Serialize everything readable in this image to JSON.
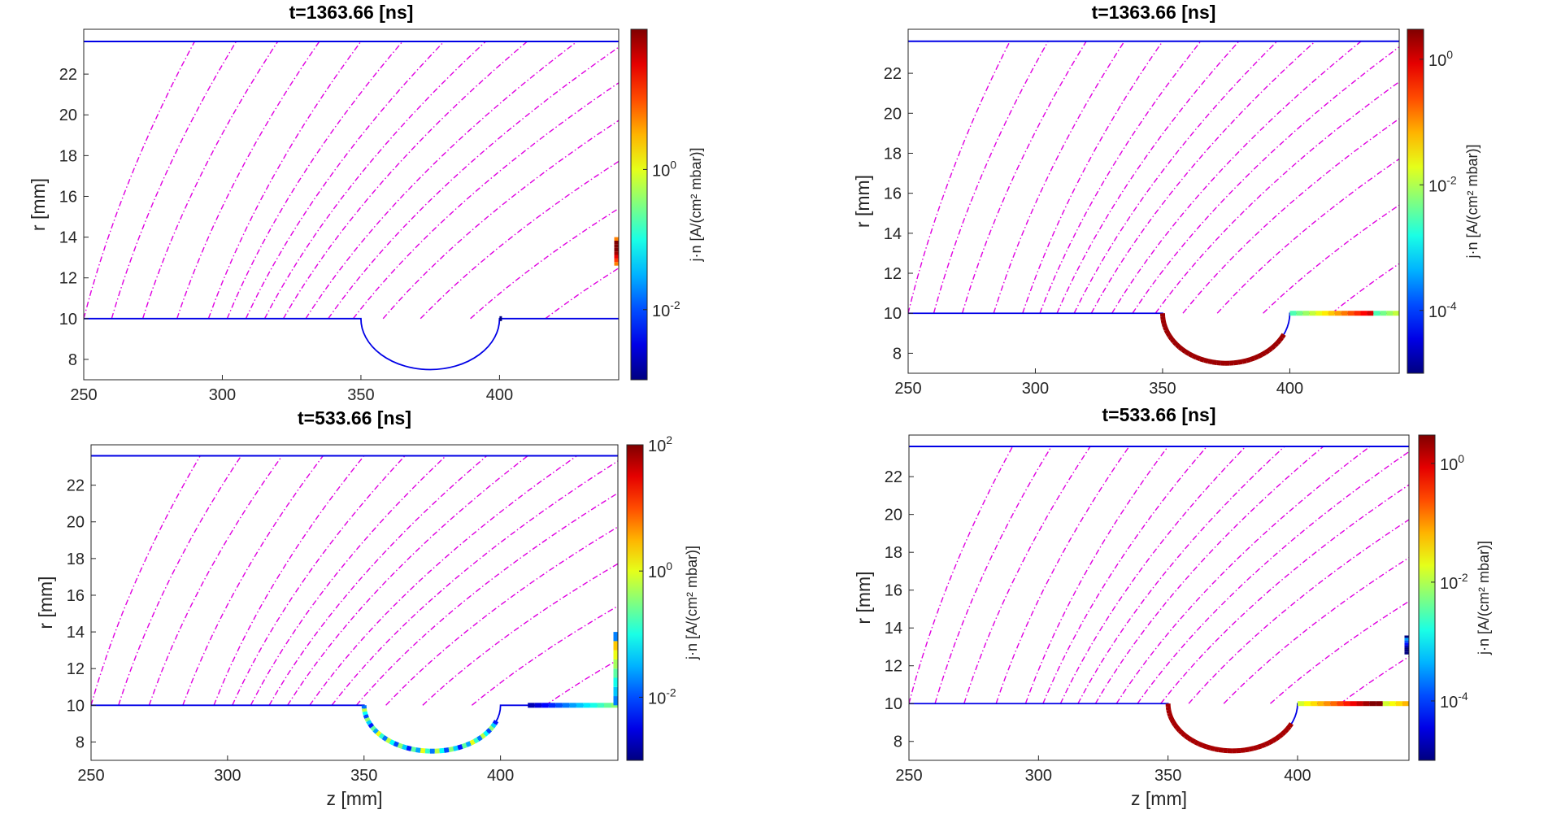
{
  "figure": {
    "background": "#ffffff",
    "field_line_color": "#e000e0",
    "boundary_color": "#0000e6"
  },
  "chart_data": [
    {
      "type": "scatter",
      "title": "t=1363.66 [ns]",
      "xlabel": "",
      "ylabel": "r [mm]",
      "xlim": [
        250,
        443
      ],
      "ylim": [
        7,
        24.2
      ],
      "xticks": [
        "250",
        "300",
        "350",
        "400"
      ],
      "yticks": [
        "8",
        "10",
        "12",
        "14",
        "16",
        "18",
        "20",
        "22"
      ],
      "colorbar": {
        "label": "j·n [A/(cm² mbar)]",
        "scale": "log",
        "range": [
          0.001,
          100
        ],
        "ticks": [
          "10^0",
          "10^-2"
        ]
      },
      "field_lines": [
        290,
        305,
        320,
        335,
        350,
        365,
        380,
        395,
        410,
        428,
        446,
        466,
        490,
        520,
        560,
        620
      ],
      "groove": {
        "z_start": 350,
        "z_end": 400,
        "r_top": 10,
        "r_bottom": 7.5
      },
      "emission": [
        {
          "z_from": 400,
          "z_to": 400,
          "r": 10,
          "level": 0.0
        },
        {
          "z_from": 443,
          "z_to": 443,
          "r_from": 12.6,
          "r_to": 14,
          "level": 0.95
        }
      ]
    },
    {
      "type": "scatter",
      "title": "t=1363.66 [ns]",
      "xlabel": "",
      "ylabel": "r [mm]",
      "xlim": [
        250,
        443
      ],
      "ylim": [
        7,
        24.2
      ],
      "xticks": [
        "250",
        "300",
        "350",
        "400"
      ],
      "yticks": [
        "8",
        "10",
        "12",
        "14",
        "16",
        "18",
        "20",
        "22"
      ],
      "colorbar": {
        "label": "j·n [A/(cm² mbar)]",
        "scale": "log",
        "range": [
          1e-05,
          3
        ],
        "ticks": [
          "10^0",
          "10^-2",
          "10^-4"
        ]
      },
      "field_lines": [
        290,
        305,
        320,
        335,
        350,
        365,
        380,
        395,
        410,
        428,
        446,
        466,
        490,
        520,
        560,
        620
      ],
      "groove": {
        "z_start": 350,
        "z_end": 400,
        "r_top": 10,
        "r_bottom": 7.5
      },
      "emission": [
        {
          "kind": "arc",
          "from_deg": 205,
          "to_deg": 360,
          "level": 0.97
        },
        {
          "z_from": 400,
          "z_to": 443,
          "r": 10,
          "level": 0.65
        }
      ]
    },
    {
      "type": "scatter",
      "title": "t=533.66 [ns]",
      "xlabel": "z [mm]",
      "ylabel": "r [mm]",
      "xlim": [
        250,
        443
      ],
      "ylim": [
        7,
        24.2
      ],
      "xticks": [
        "250",
        "300",
        "350",
        "400"
      ],
      "yticks": [
        "8",
        "10",
        "12",
        "14",
        "16",
        "18",
        "20",
        "22"
      ],
      "colorbar": {
        "label": "j·n [A/(cm² mbar)]",
        "scale": "log",
        "range": [
          0.001,
          100
        ],
        "ticks": [
          "10^2",
          "10^0",
          "10^-2"
        ]
      },
      "field_lines": [
        290,
        305,
        320,
        335,
        350,
        365,
        380,
        395,
        410,
        428,
        446,
        466,
        490,
        520,
        560,
        620
      ],
      "groove": {
        "z_start": 350,
        "z_end": 400,
        "r_top": 10,
        "r_bottom": 7.5
      },
      "emission": [
        {
          "kind": "arc",
          "from_deg": 200,
          "to_deg": 360,
          "level": 0.35
        },
        {
          "z_from": 410,
          "z_to": 443,
          "r": 10,
          "level": 0.25
        },
        {
          "z_from": 443,
          "z_to": 443,
          "r_from": 10,
          "r_to": 14,
          "level": 0.45
        }
      ]
    },
    {
      "type": "scatter",
      "title": "t=533.66 [ns]",
      "xlabel": "z [mm]",
      "ylabel": "r [mm]",
      "xlim": [
        250,
        443
      ],
      "ylim": [
        7,
        24.2
      ],
      "xticks": [
        "250",
        "300",
        "350",
        "400"
      ],
      "yticks": [
        "8",
        "10",
        "12",
        "14",
        "16",
        "18",
        "20",
        "22"
      ],
      "colorbar": {
        "label": "j·n [A/(cm² mbar)]",
        "scale": "log",
        "range": [
          1e-05,
          3
        ],
        "ticks": [
          "10^0",
          "10^-2",
          "10^-4"
        ]
      },
      "field_lines": [
        290,
        305,
        320,
        335,
        350,
        365,
        380,
        395,
        410,
        428,
        446,
        466,
        490,
        520,
        560,
        620
      ],
      "groove": {
        "z_start": 350,
        "z_end": 400,
        "r_top": 10,
        "r_bottom": 7.5
      },
      "emission": [
        {
          "kind": "arc",
          "from_deg": 205,
          "to_deg": 360,
          "level": 0.96
        },
        {
          "z_from": 400,
          "z_to": 443,
          "r": 10,
          "level": 0.78
        },
        {
          "z_from": 443,
          "z_to": 443,
          "r_from": 12.6,
          "r_to": 13.6,
          "level": 0.05
        }
      ]
    }
  ]
}
